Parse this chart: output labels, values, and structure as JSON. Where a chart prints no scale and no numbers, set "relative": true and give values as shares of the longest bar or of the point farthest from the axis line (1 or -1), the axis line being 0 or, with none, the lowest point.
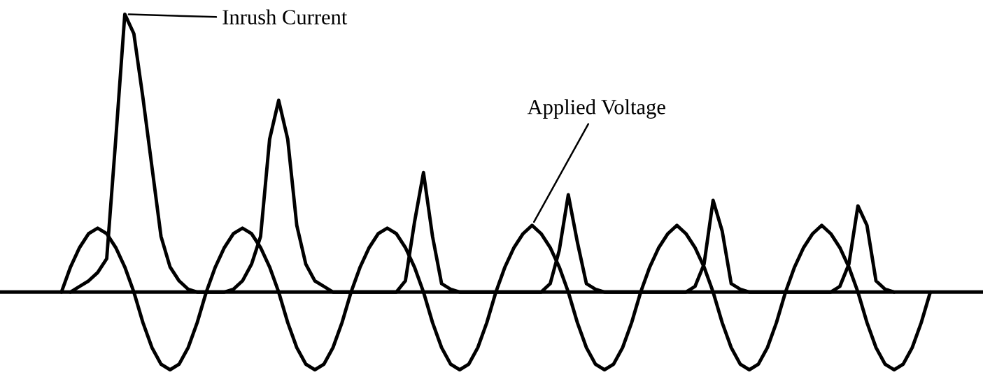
{
  "chart_data": {
    "type": "line",
    "relative": true,
    "marker": "none",
    "line_style": "solid",
    "categories": [
      null,
      null,
      null,
      null,
      null,
      null,
      null,
      null,
      null,
      null,
      null,
      null,
      null,
      null,
      null,
      null,
      null,
      null,
      null,
      null,
      null,
      null,
      null,
      null,
      null,
      null,
      null,
      null,
      null,
      null,
      null,
      null,
      null,
      null,
      null,
      null,
      null,
      null,
      null,
      null,
      null,
      null,
      null,
      null,
      null,
      null,
      null,
      null,
      null,
      null,
      null,
      null,
      null,
      null,
      null,
      null,
      null,
      null,
      null,
      null,
      null,
      null,
      null,
      null,
      null,
      null,
      null,
      null,
      null,
      null,
      null,
      null,
      null,
      null,
      null,
      null,
      null,
      null,
      null,
      null,
      null,
      null,
      null,
      null,
      null,
      null,
      null,
      null,
      null,
      null,
      null,
      null,
      null,
      null,
      null,
      null,
      null
    ],
    "series": [
      {
        "name": "Inrush Current",
        "color": "#000000",
        "values": [
          null,
          0,
          0.02,
          0.04,
          0.07,
          0.12,
          0.55,
          1.0,
          0.93,
          0.7,
          0.45,
          0.2,
          0.09,
          0.04,
          0.01,
          0,
          0,
          0,
          0,
          0.01,
          0.04,
          0.1,
          0.2,
          0.55,
          0.69,
          0.55,
          0.24,
          0.1,
          0.04,
          0.02,
          0,
          0,
          0,
          0,
          0,
          0,
          0,
          0,
          0.04,
          0.25,
          0.43,
          0.2,
          0.03,
          0.01,
          0,
          0,
          0,
          0,
          0,
          0,
          0,
          0,
          0,
          0,
          0.03,
          0.15,
          0.35,
          0.18,
          0.03,
          0.01,
          0,
          0,
          0,
          0,
          0,
          0,
          0,
          0,
          0,
          0,
          0.02,
          0.1,
          0.33,
          0.22,
          0.03,
          0.01,
          0,
          0,
          0,
          0,
          0,
          0,
          0,
          0,
          0,
          0,
          0.02,
          0.1,
          0.31,
          0.24,
          0.04,
          0.01,
          0,
          null,
          null,
          null,
          null
        ]
      },
      {
        "name": "Applied Voltage",
        "color": "#000000",
        "values": [
          0,
          0.09,
          0.16,
          0.21,
          0.23,
          0.21,
          0.16,
          0.09,
          0,
          -0.11,
          -0.2,
          -0.26,
          -0.28,
          -0.26,
          -0.2,
          -0.11,
          0,
          0.09,
          0.16,
          0.21,
          0.23,
          0.21,
          0.16,
          0.09,
          0,
          -0.11,
          -0.2,
          -0.26,
          -0.28,
          -0.26,
          -0.2,
          -0.11,
          0,
          0.09,
          0.16,
          0.21,
          0.23,
          0.21,
          0.16,
          0.09,
          0,
          -0.11,
          -0.2,
          -0.26,
          -0.28,
          -0.26,
          -0.2,
          -0.11,
          0,
          0.09,
          0.16,
          0.21,
          0.24,
          0.21,
          0.16,
          0.09,
          0,
          -0.11,
          -0.2,
          -0.26,
          -0.28,
          -0.26,
          -0.2,
          -0.11,
          0,
          0.09,
          0.16,
          0.21,
          0.24,
          0.21,
          0.16,
          0.09,
          0,
          -0.11,
          -0.2,
          -0.26,
          -0.28,
          -0.26,
          -0.2,
          -0.11,
          0,
          0.09,
          0.16,
          0.21,
          0.24,
          0.21,
          0.16,
          0.09,
          0,
          -0.11,
          -0.2,
          -0.26,
          -0.28,
          -0.26,
          -0.2,
          -0.11,
          0
        ]
      }
    ]
  }
}
